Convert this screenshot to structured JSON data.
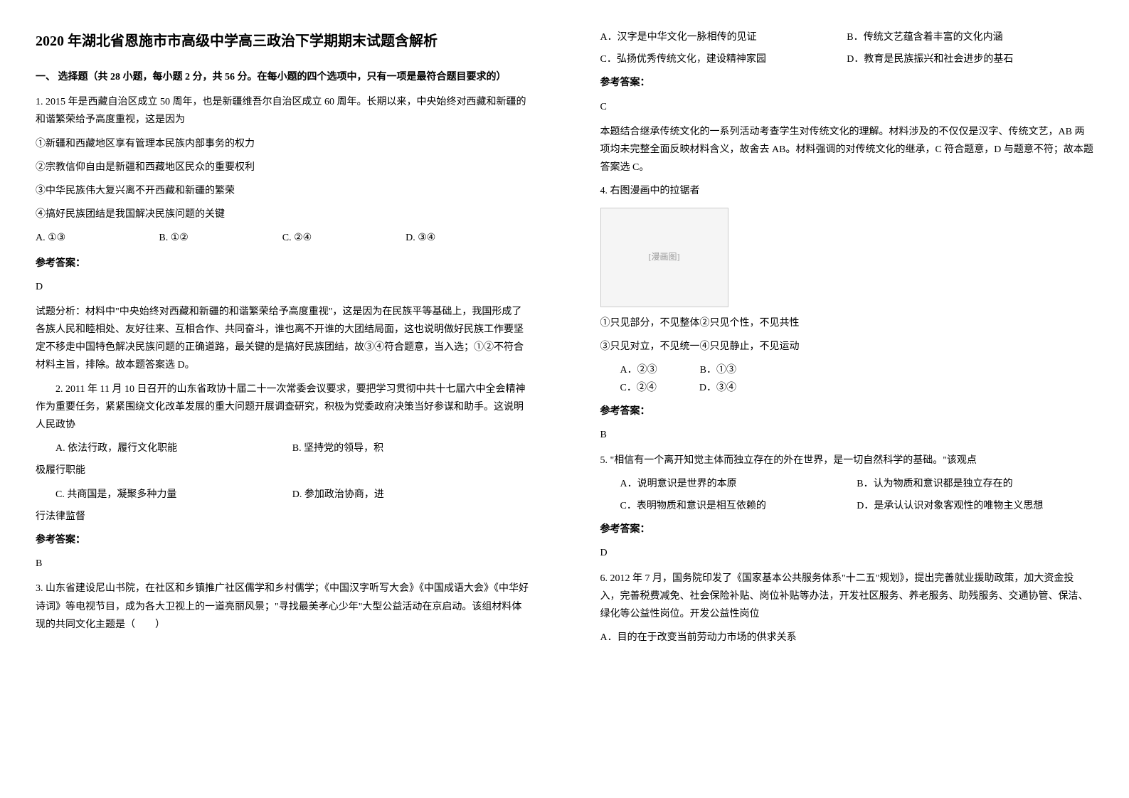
{
  "left": {
    "title": "2020 年湖北省恩施市市高级中学高三政治下学期期末试题含解析",
    "section1_header": "一、 选择题（共 28 小题，每小题 2 分，共 56 分。在每小题的四个选项中，只有一项是最符合题目要求的）",
    "q1": {
      "stem1": "1. 2015 年是西藏自治区成立 50 周年，也是新疆维吾尔自治区成立 60 周年。长期以来，中央始终对西藏和新疆的和谐繁荣给予高度重视，这是因为",
      "s1": "①新疆和西藏地区享有管理本民族内部事务的权力",
      "s2": "②宗教信仰自由是新疆和西藏地区民众的重要权利",
      "s3": "③中华民族伟大复兴离不开西藏和新疆的繁荣",
      "s4": "④搞好民族团结是我国解决民族问题的关键",
      "optA": "A. ①③",
      "optB": "B. ①②",
      "optC": "C. ②④",
      "optD": "D. ③④",
      "ans_label": "参考答案：",
      "ans": "D",
      "explain": "试题分析：材料中\"中央始终对西藏和新疆的和谐繁荣给予高度重视\"，这是因为在民族平等基础上，我国形成了各族人民和睦相处、友好往来、互相合作、共同奋斗，谁也离不开谁的大团结局面，这也说明做好民族工作要坚定不移走中国特色解决民族问题的正确道路，最关键的是搞好民族团结，故③④符合题意，当入选；①②不符合材料主旨，排除。故本题答案选 D。"
    },
    "q2": {
      "stem": "2. 2011 年 11 月 10 日召开的山东省政协十届二十一次常委会议要求，要把学习贯彻中共十七届六中全会精神作为重要任务，紧紧围绕文化改革发展的重大问题开展调查研究，积极为党委政府决策当好参谋和助手。这说明人民政协",
      "optA1": "A. 依法行政，履行文化职能",
      "optB1": "B. 坚持党的领导，积",
      "optB2": "极履行职能",
      "optC1": "C. 共商国是，凝聚多种力量",
      "optD1": "D. 参加政治协商，进",
      "optD2": "行法律监督",
      "ans_label": "参考答案：",
      "ans": "B"
    },
    "q3": {
      "stem": "3. 山东省建设尼山书院，在社区和乡镇推广社区儒学和乡村儒学；《中国汉字听写大会》《中国成语大会》《中华好诗词》等电视节目，成为各大卫视上的一道亮丽风景；\"寻找最美孝心少年\"大型公益活动在京启动。该组材料体现的共同文化主题是（　　）"
    }
  },
  "right": {
    "q3opts": {
      "optA": "A．汉字是中华文化一脉相传的见证",
      "optB": "B．传统文艺蕴含着丰富的文化内涵",
      "optC": "C．弘扬优秀传统文化，建设精神家园",
      "optD": "D．教育是民族振兴和社会进步的基石",
      "ans_label": "参考答案：",
      "ans": "C",
      "explain": "本题结合继承传统文化的一系列活动考查学生对传统文化的理解。材料涉及的不仅仅是汉字、传统文艺，AB 两项均未完整全面反映材料含义，故舍去 AB。材料强调的对传统文化的继承，C 符合题意，D 与题意不符；故本题答案选 C。"
    },
    "q4": {
      "stem": "4. 右图漫画中的拉锯者",
      "cartoon_label": "[漫画图]",
      "s1": "①只见部分，不见整体②只见个性，不见共性",
      "s2": "③只见对立，不见统一④只见静止，不见运动",
      "optA": "A．②③",
      "optB": "B．①③",
      "optC": "C．②④",
      "optD": "D．③④",
      "ans_label": "参考答案：",
      "ans": "B"
    },
    "q5": {
      "stem": "5. \"相信有一个离开知觉主体而独立存在的外在世界，是一切自然科学的基础。\"该观点",
      "optA": "A．说明意识是世界的本原",
      "optB": "B．认为物质和意识都是独立存在的",
      "optC": "C．表明物质和意识是相互依赖的",
      "optD": "D．是承认认识对象客观性的唯物主义思想",
      "ans_label": "参考答案：",
      "ans": "D"
    },
    "q6": {
      "stem": "6. 2012 年 7 月，国务院印发了《国家基本公共服务体系\"十二五\"规划》，提出完善就业援助政策，加大资金投入，完善税费减免、社会保险补贴、岗位补贴等办法，开发社区服务、养老服务、助残服务、交通协管、保洁、绿化等公益性岗位。开发公益性岗位",
      "optA": "A．目的在于改变当前劳动力市场的供求关系"
    }
  }
}
